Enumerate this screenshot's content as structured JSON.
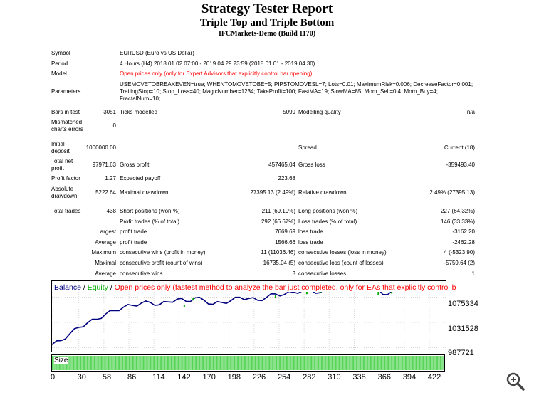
{
  "header": {
    "title": "Strategy Tester Report",
    "subtitle": "Triple Top and Triple Bottom",
    "server": "IFCMarkets-Demo (Build 1170)"
  },
  "info": {
    "symbol_label": "Symbol",
    "symbol": "EURUSD (Euro vs US Dollar)",
    "period_label": "Period",
    "period": "4 Hours (H4) 2018.01.02 07:00 - 2019.04.29 23:59 (2018.01.01 - 2019.04.30)",
    "model_label": "Model",
    "model": "Open prices only (only for Expert Advisors that explicitly control bar opening)",
    "params_label": "Parameters",
    "params_line1": "USEMOVETOBREAKEVEN=true; WHENTOMOVETOBE=5; PIPSTOMOVESL=7; Lots=0.01; MaximumRisk=0.006; DecreaseFactor=0.001;",
    "params_line2": "TrailingStop=10; Stop_Loss=40; MagicNumber=1234; TakeProfit=100; FastMA=19; SlowMA=85; Mom_Sell=0.4; Mom_Buy=4;",
    "params_line3": "FractalNum=10;"
  },
  "stats": {
    "bars_label": "Bars in test",
    "bars": "3051",
    "ticks_label": "Ticks modelled",
    "ticks": "5099",
    "quality_label": "Modelling quality",
    "quality": "n/a",
    "mismatch_label1": "Mismatched",
    "mismatch_label2": "charts errors",
    "mismatch": "0",
    "deposit_label1": "Initial",
    "deposit_label2": "deposit",
    "deposit": "1000000.00",
    "spread_label": "Spread",
    "spread": "Current (18)",
    "netprofit_label1": "Total net",
    "netprofit_label2": "profit",
    "netprofit": "97971.63",
    "grossprofit_label": "Gross profit",
    "grossprofit": "457465.04",
    "grossloss_label": "Gross loss",
    "grossloss": "-359493.40",
    "pf_label": "Profit factor",
    "pf": "1.27",
    "payoff_label": "Expected payoff",
    "payoff": "223.68",
    "absdd_label1": "Absolute",
    "absdd_label2": "drawdown",
    "absdd": "5222.64",
    "maxdd_label": "Maximal drawdown",
    "maxdd": "27395.13 (2.49%)",
    "reldd_label": "Relative drawdown",
    "reldd": "2.49% (27395.13)",
    "trades_label": "Total trades",
    "trades": "438",
    "short_label": "Short positions (won %)",
    "short": "211 (69.19%)",
    "long_label": "Long positions (won %)",
    "long": "227 (64.32%)",
    "pt_label": "Profit trades (% of total)",
    "pt": "292 (66.67%)",
    "lt_label": "Loss trades (% of total)",
    "lt": "146 (33.33%)",
    "largest_label": "Largest",
    "lp_label": "profit trade",
    "lp": "7669.69",
    "ll_label": "loss trade",
    "ll": "-3162.20",
    "average_label": "Average",
    "ap_label": "profit trade",
    "ap": "1566.66",
    "al_label": "loss trade",
    "al": "-2462.28",
    "maximum_label": "Maximum",
    "mcw_label": "consecutive wins (profit in money)",
    "mcw": "11 (11036.46)",
    "mcl_label": "consecutive losses (loss in money)",
    "mcl": "4 (-5323.90)",
    "maximal_label": "Maximal",
    "mcp_label": "consecutive profit (count of wins)",
    "mcp": "16735.04 (5)",
    "mcll_label": "consecutive loss (count of losses)",
    "mcll": "-5759.64 (2)",
    "average2_label": "Average",
    "acw_label": "consecutive wins",
    "acw": "3",
    "acl_label": "consecutive losses",
    "acl": "1"
  },
  "chart_data": {
    "type": "line",
    "legend_balance": "Balance",
    "legend_sep1": " / ",
    "legend_equity": "Equity",
    "legend_sep2": " / ",
    "legend_note": "Open prices only (fastest method to analyze the bar just completed, only for EAs that explicitly control b",
    "y_ticks": [
      "1075334",
      "1031528",
      "987721"
    ],
    "y_tick_values": [
      1075334,
      1031528,
      987721
    ],
    "ylim": [
      981000,
      1103000
    ],
    "x_ticks": [
      "0",
      "30",
      "58",
      "86",
      "114",
      "142",
      "170",
      "198",
      "226",
      "254",
      "282",
      "310",
      "338",
      "366",
      "394",
      "422"
    ],
    "xlim": [
      0,
      438
    ],
    "size_label": "Size",
    "series": [
      {
        "name": "Balance",
        "color": "#000080",
        "x": [
          0,
          10,
          20,
          30,
          40,
          50,
          60,
          70,
          80,
          90,
          100,
          110,
          120,
          130,
          140,
          150,
          160,
          170,
          180,
          190,
          200,
          210,
          220,
          230,
          240,
          250,
          260,
          270,
          280,
          290,
          300,
          310,
          320,
          330,
          340,
          350,
          360,
          370,
          380,
          390,
          400,
          410,
          420,
          430,
          438
        ],
        "y": [
          993000,
          1000000,
          1012000,
          1023000,
          1031000,
          1037000,
          1046000,
          1052000,
          1058000,
          1061000,
          1065000,
          1066000,
          1062000,
          1067000,
          1072000,
          1068000,
          1074000,
          1070000,
          1063000,
          1066000,
          1069000,
          1075000,
          1073000,
          1070000,
          1075000,
          1081000,
          1080000,
          1084000,
          1086000,
          1087000,
          1083000,
          1090000,
          1095000,
          1093000,
          1094000,
          1091000,
          1093000,
          1080000,
          1085000,
          1089000,
          1088000,
          1090000,
          1092000,
          1096000,
          1098000
        ]
      },
      {
        "name": "Equity",
        "color": "#00aa00",
        "x": [
          148,
          158,
          250,
          285,
          300,
          365,
          380
        ],
        "y": [
          1060000,
          1072000,
          1077000,
          1083000,
          1085000,
          1082000,
          1084000
        ]
      }
    ]
  }
}
